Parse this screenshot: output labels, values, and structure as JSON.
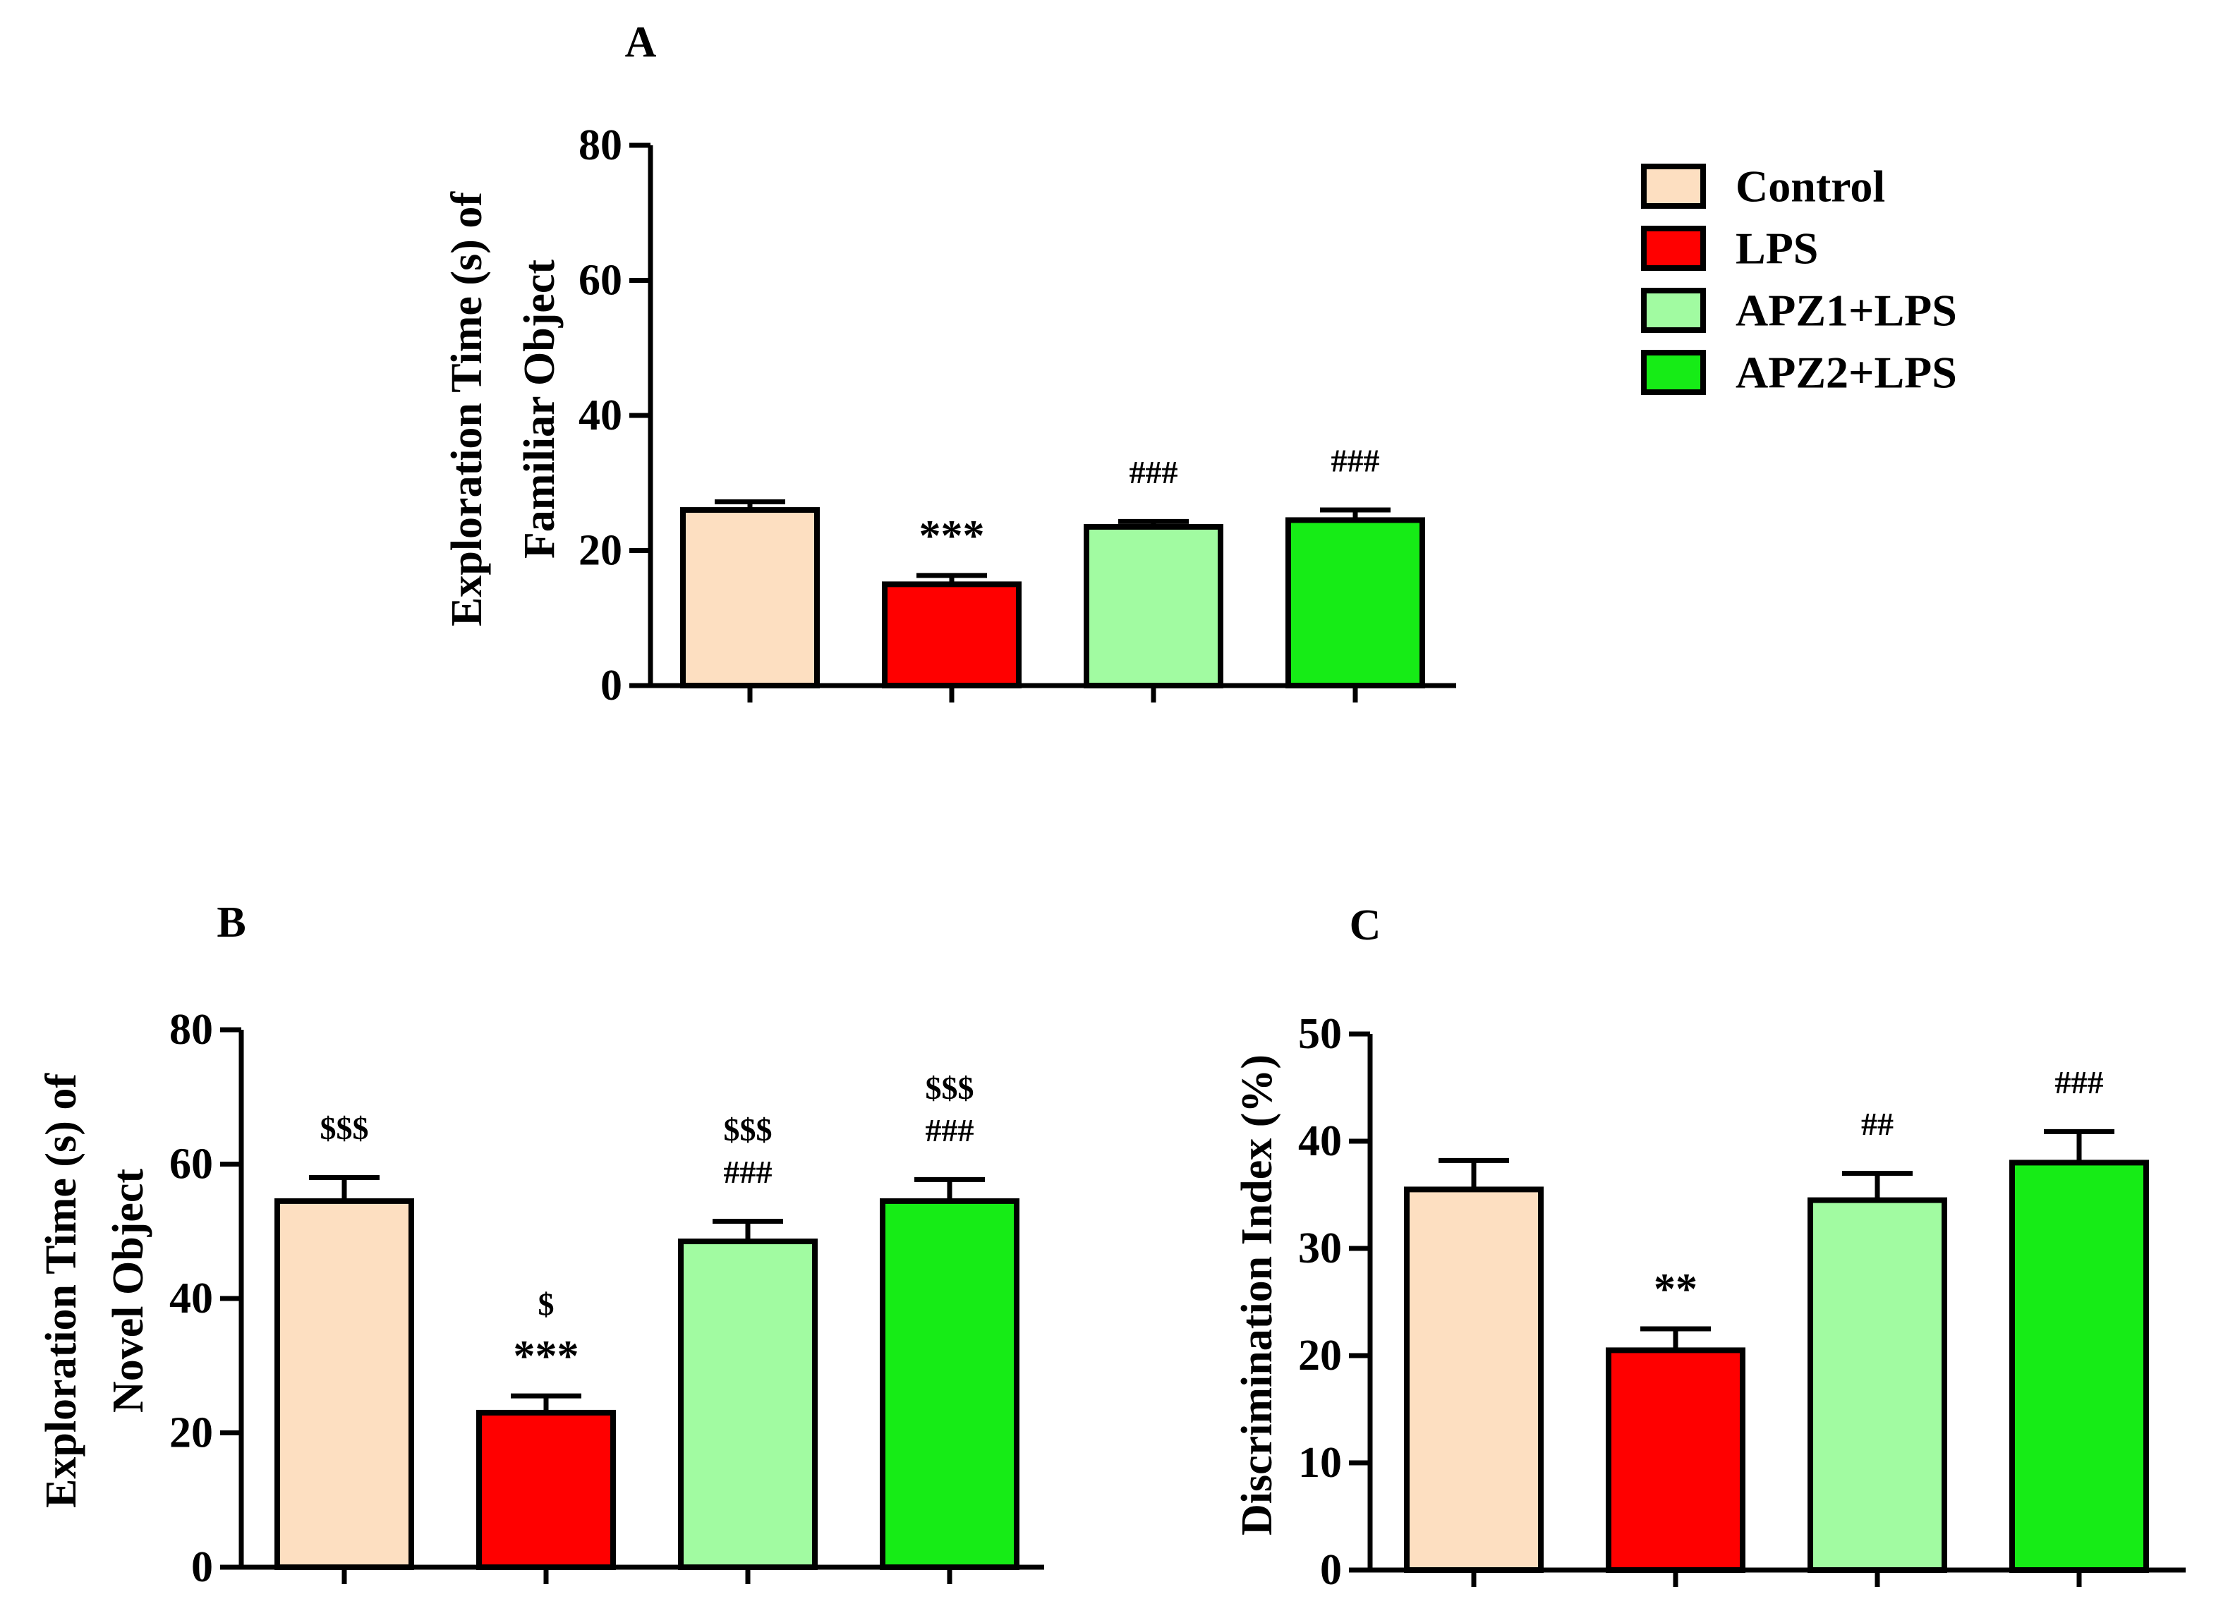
{
  "colors": {
    "control": "#FDDFC1",
    "lps": "#FF0000",
    "apz1": "#A1FBA1",
    "apz2": "#16EC16",
    "stroke": "#000000"
  },
  "legend": [
    "Control",
    "LPS",
    "APZ1+LPS",
    "APZ2+LPS"
  ],
  "chart_data": [
    {
      "id": "A",
      "type": "bar",
      "title": "A",
      "ylabel_lines": [
        "Exploration Time (s) of",
        "Familiar Object"
      ],
      "ylim": [
        0,
        80
      ],
      "yticks": [
        0,
        20,
        40,
        60,
        80
      ],
      "categories": [
        "Control",
        "LPS",
        "APZ1+LPS",
        "APZ2+LPS"
      ],
      "values": [
        26,
        15,
        23.5,
        24.5
      ],
      "errors": [
        1.2,
        1.3,
        0.8,
        1.5
      ],
      "annotations": [
        [],
        [
          "***"
        ],
        [
          "###"
        ],
        [
          "###"
        ]
      ]
    },
    {
      "id": "B",
      "type": "bar",
      "title": "B",
      "ylabel_lines": [
        "Exploration Time (s) of",
        "Novel Object"
      ],
      "ylim": [
        0,
        80
      ],
      "yticks": [
        0,
        20,
        40,
        60,
        80
      ],
      "categories": [
        "Control",
        "LPS",
        "APZ1+LPS",
        "APZ2+LPS"
      ],
      "values": [
        54.5,
        23,
        48.5,
        54.5
      ],
      "errors": [
        3.5,
        2.5,
        3.0,
        3.2
      ],
      "annotations": [
        [
          "$$$"
        ],
        [
          "$",
          "***"
        ],
        [
          "$$$",
          "###"
        ],
        [
          "$$$",
          "###"
        ]
      ]
    },
    {
      "id": "C",
      "type": "bar",
      "title": "C",
      "ylabel_lines": [
        "Discrimination Index (%)"
      ],
      "ylim": [
        0,
        50
      ],
      "yticks": [
        0,
        10,
        20,
        30,
        40,
        50
      ],
      "categories": [
        "Control",
        "LPS",
        "APZ1+LPS",
        "APZ2+LPS"
      ],
      "values": [
        35.5,
        20.5,
        34.5,
        38
      ],
      "errors": [
        2.7,
        2.0,
        2.5,
        2.9
      ],
      "annotations": [
        [],
        [
          "**"
        ],
        [
          "##"
        ],
        [
          "###"
        ]
      ]
    }
  ]
}
